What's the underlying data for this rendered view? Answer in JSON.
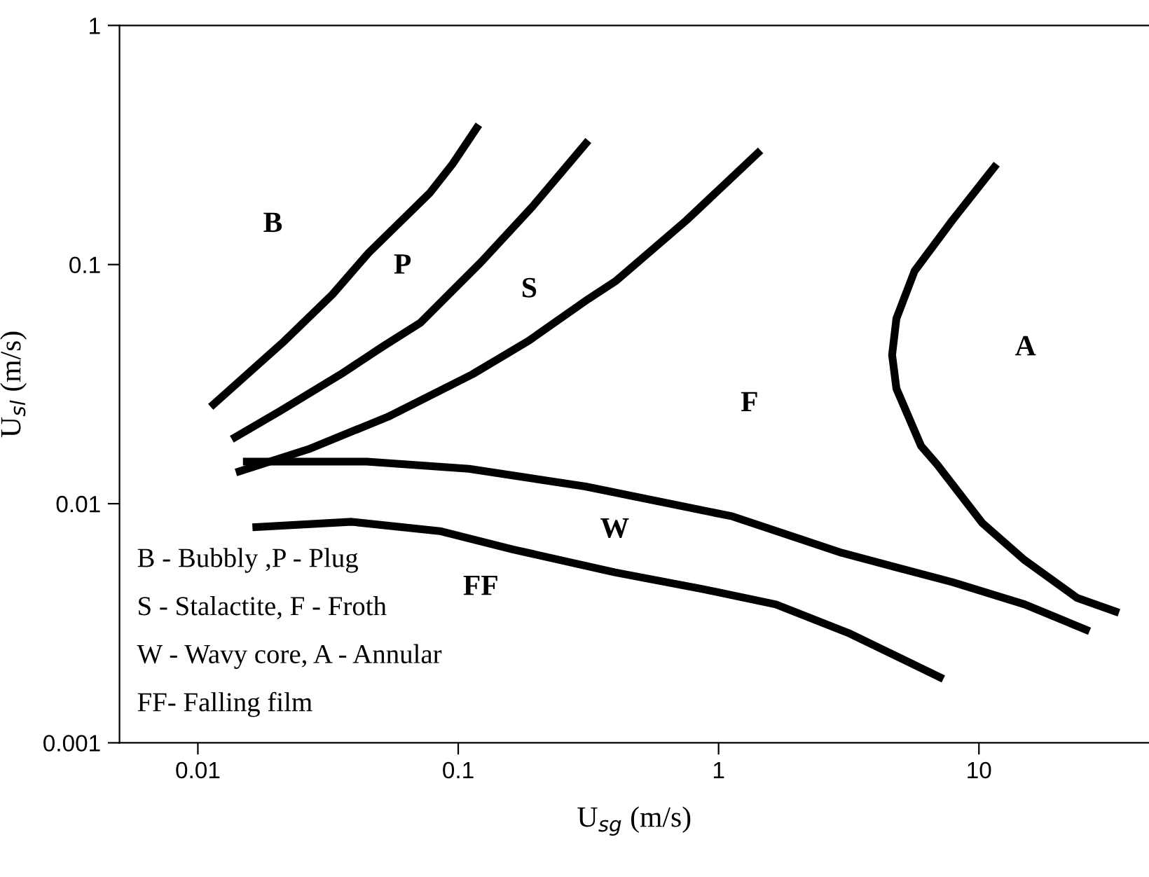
{
  "chart_data": {
    "type": "line",
    "xlabel": "U$_{sg}$ (m/s)",
    "ylabel": "U$_{sl}$ (m/s)",
    "log": "xy",
    "xlim": [
      0.005,
      45
    ],
    "ylim": [
      0.001,
      1
    ],
    "xticks": [
      0.01,
      0.1,
      1,
      10
    ],
    "yticks": [
      0.001,
      0.01,
      0.1,
      1
    ],
    "grid": false,
    "marker": "none",
    "line_style": "solid",
    "series": [
      {
        "color": "#000000",
        "x": [
          0.0112,
          0.0215,
          0.0328,
          0.0453,
          0.078,
          0.095,
          0.12
        ],
        "values": [
          0.0254,
          0.0479,
          0.0748,
          0.112,
          0.2,
          0.263,
          0.384
        ]
      },
      {
        "color": "#000000",
        "x": [
          0.0135,
          0.0207,
          0.0353,
          0.0513,
          0.0716,
          0.0917,
          0.122,
          0.193,
          0.316
        ],
        "values": [
          0.0186,
          0.0244,
          0.0347,
          0.0454,
          0.0571,
          0.0748,
          0.102,
          0.175,
          0.33
        ]
      },
      {
        "color": "#000000",
        "x": [
          0.014,
          0.0266,
          0.0538,
          0.113,
          0.186,
          0.316,
          0.405,
          0.752,
          1.45
        ],
        "values": [
          0.0135,
          0.0169,
          0.0231,
          0.0347,
          0.0479,
          0.0718,
          0.0857,
          0.153,
          0.3
        ]
      },
      {
        "color": "#000000",
        "x": [
          11.7,
          7.9,
          5.66,
          4.82,
          4.64,
          4.82,
          6.0,
          6.9,
          10.3,
          15.0,
          23.8,
          34.5
        ],
        "values": [
          0.263,
          0.153,
          0.094,
          0.0595,
          0.0419,
          0.0303,
          0.0174,
          0.0146,
          0.0083,
          0.0058,
          0.00404,
          0.0035
        ]
      },
      {
        "color": "#000000",
        "x": [
          0.0149,
          0.0445,
          0.11,
          0.308,
          1.13,
          2.97,
          7.9,
          15.0,
          26.6
        ],
        "values": [
          0.015,
          0.015,
          0.014,
          0.0118,
          0.00885,
          0.00623,
          0.0047,
          0.00379,
          0.00293
        ]
      },
      {
        "color": "#000000",
        "x": [
          0.0162,
          0.039,
          0.085,
          0.162,
          0.4,
          0.873,
          1.66,
          3.2,
          7.3
        ],
        "values": [
          0.00797,
          0.0084,
          0.00768,
          0.00644,
          0.00516,
          0.00439,
          0.00379,
          0.00286,
          0.00185
        ]
      }
    ],
    "annotations": [
      "B",
      "P",
      "S",
      "F",
      "A",
      "W",
      "FF",
      "B - Bubbly ,P - Plug",
      "S - Stalactite, F - Froth",
      "W - Wavy core, A - Annular",
      "FF- Falling film"
    ]
  }
}
